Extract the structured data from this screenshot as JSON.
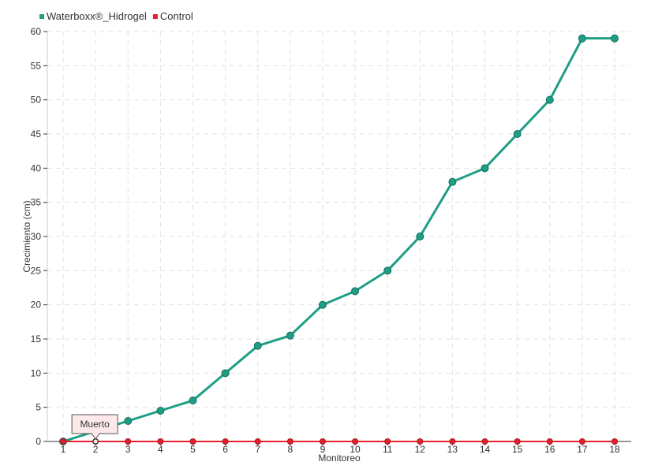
{
  "chart_data": {
    "type": "line",
    "title": "",
    "xlabel": "Monitoreo",
    "ylabel": "Crecimiento (cm)",
    "categories": [
      "1",
      "2",
      "3",
      "4",
      "5",
      "6",
      "7",
      "8",
      "9",
      "10",
      "11",
      "12",
      "13",
      "14",
      "15",
      "16",
      "17",
      "18"
    ],
    "ylim": [
      0,
      60
    ],
    "yticks": [
      0,
      5,
      10,
      15,
      20,
      25,
      30,
      35,
      40,
      45,
      50,
      55,
      60
    ],
    "grid": true,
    "legend_position": "top-left",
    "series": [
      {
        "name": "Waterboxx®_Hidrogel",
        "color": "#1e9e84",
        "values": [
          0,
          1.5,
          3,
          4.5,
          6,
          10,
          14,
          15.5,
          20,
          22,
          25,
          30,
          38,
          40,
          45,
          50,
          59,
          59
        ]
      },
      {
        "name": "Control",
        "color": "#e8202e",
        "values": [
          0,
          0,
          0,
          0,
          0,
          0,
          0,
          0,
          0,
          0,
          0,
          0,
          0,
          0,
          0,
          0,
          0,
          0
        ]
      }
    ],
    "annotations": [
      {
        "text": "Muerto",
        "series": "Control",
        "category": "2"
      }
    ]
  }
}
